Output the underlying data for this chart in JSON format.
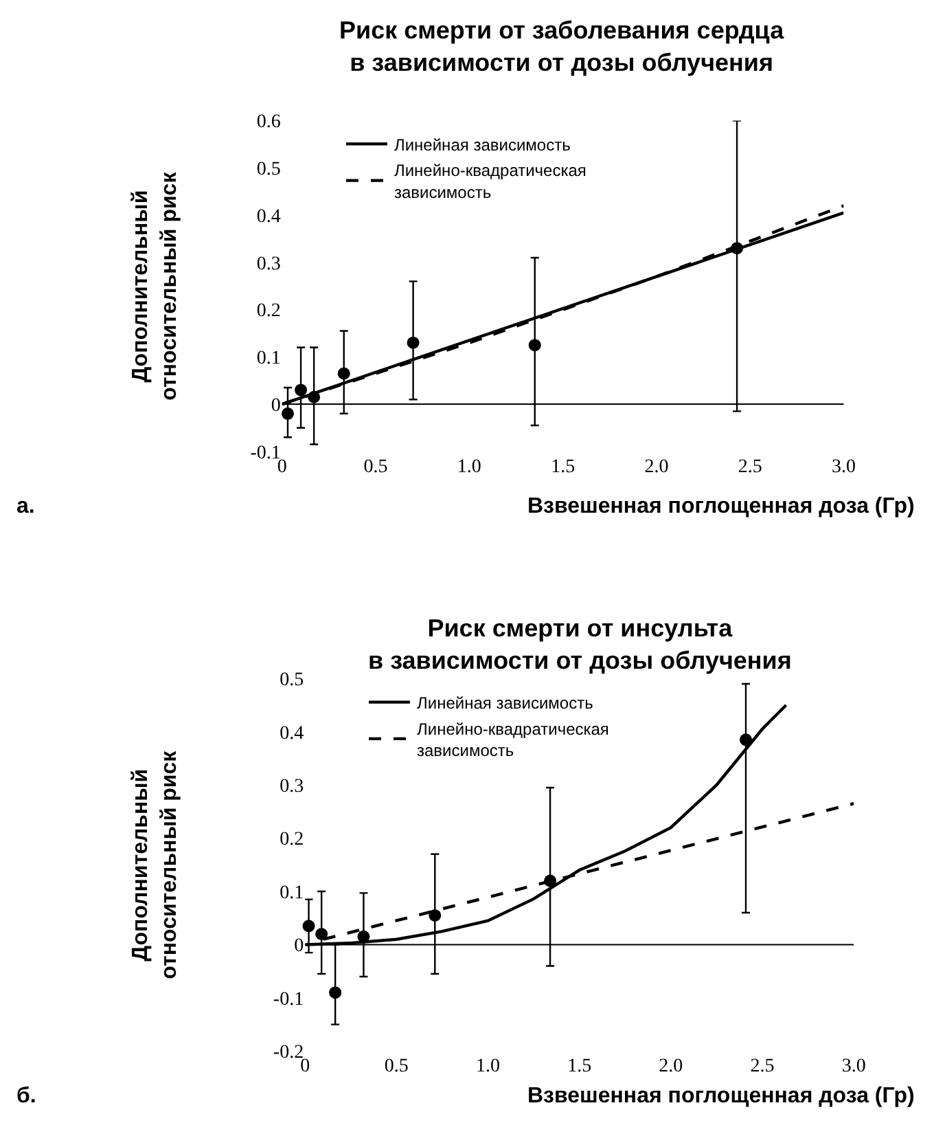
{
  "chart_data": [
    {
      "type": "scatter",
      "title": "Риск смерти от заболевания сердца\nв зависимости от дозы облучения",
      "xlabel": "Взвешенная поглощенная доза (Гр)",
      "ylabel": "Дополнительный\nотносительный риск",
      "annotations": [
        "а."
      ],
      "ref_lines": [
        {
          "axis": "y",
          "value": 0
        }
      ],
      "xlim": [
        0,
        3.0
      ],
      "ylim": [
        -0.1,
        0.6
      ],
      "xticks": [
        0,
        0.5,
        {
          "value": 1.0,
          "label": "1.0"
        },
        1.5,
        {
          "value": 2.0,
          "label": "2.0"
        },
        2.5,
        {
          "value": 3.0,
          "label": "3.0"
        }
      ],
      "yticks": [
        -0.1,
        0,
        0.1,
        0.2,
        0.3,
        0.4,
        0.5,
        0.6
      ],
      "grid": false,
      "legend": "top left",
      "series": [
        {
          "marker": "circle",
          "color": "#000000",
          "x": [
            0.03,
            0.1,
            0.17,
            0.33,
            0.7,
            1.35,
            2.43
          ],
          "values": [
            -0.02,
            0.03,
            0.015,
            0.065,
            0.13,
            0.125,
            0.33
          ],
          "errors": [
            [
              -0.07,
              0.035
            ],
            [
              -0.05,
              0.12
            ],
            [
              -0.085,
              0.12
            ],
            [
              -0.02,
              0.155
            ],
            [
              0.01,
              0.26
            ],
            [
              -0.045,
              0.31
            ],
            [
              -0.015,
              0.6
            ]
          ]
        },
        {
          "type": "line",
          "name": "Линейная зависимость",
          "line_style": "solid",
          "color": "#000000",
          "x": [
            0,
            3.0
          ],
          "values": [
            0,
            0.405
          ]
        },
        {
          "type": "line",
          "name": "Линейно-квадратическая\nзависимость",
          "line_style": "dashed",
          "color": "#000000",
          "x": [
            0,
            0.5,
            1.0,
            1.5,
            2.0,
            2.5,
            3.0
          ],
          "values": [
            0,
            0.065,
            0.13,
            0.2,
            0.27,
            0.345,
            0.42
          ]
        }
      ]
    },
    {
      "type": "scatter",
      "title": "Риск смерти от инсульта\nв зависимости от дозы облучения",
      "xlabel": "Взвешенная поглощенная доза (Гр)",
      "ylabel": "Дополнительный\nотносительный риск",
      "annotations": [
        "б."
      ],
      "ref_lines": [
        {
          "axis": "y",
          "value": 0
        }
      ],
      "xlim": [
        0,
        3.0
      ],
      "ylim": [
        -0.2,
        0.5
      ],
      "xticks": [
        0,
        0.5,
        {
          "value": 1.0,
          "label": "1.0"
        },
        1.5,
        {
          "value": 2.0,
          "label": "2.0"
        },
        2.5,
        {
          "value": 3.0,
          "label": "3.0"
        }
      ],
      "yticks": [
        -0.2,
        -0.1,
        0,
        0.1,
        0.2,
        0.3,
        0.4,
        0.5
      ],
      "grid": false,
      "legend": "top left",
      "series": [
        {
          "marker": "circle",
          "color": "#000000",
          "x": [
            0.02,
            0.09,
            0.165,
            0.32,
            0.71,
            1.34,
            2.41
          ],
          "values": [
            0.035,
            0.02,
            -0.09,
            0.015,
            0.055,
            0.12,
            0.385
          ],
          "errors": [
            [
              -0.015,
              0.085
            ],
            [
              -0.055,
              0.1
            ],
            [
              -0.15,
              0
            ],
            [
              -0.06,
              0.097
            ],
            [
              -0.055,
              0.17
            ],
            [
              -0.04,
              0.295
            ],
            [
              0.06,
              0.49
            ]
          ]
        },
        {
          "type": "line",
          "name": "Линейная зависимость",
          "line_style": "solid",
          "color": "#000000",
          "x": [
            0,
            0.25,
            0.5,
            0.75,
            1.0,
            1.25,
            1.5,
            1.75,
            2.0,
            2.25,
            2.5,
            2.63
          ],
          "values": [
            0,
            0.003,
            0.01,
            0.025,
            0.045,
            0.086,
            0.14,
            0.176,
            0.22,
            0.3,
            0.405,
            0.45
          ]
        },
        {
          "type": "line",
          "name": "Линейно-квадратическая\nзависимость",
          "line_style": "dashed",
          "color": "#000000",
          "x": [
            0.1,
            3.0
          ],
          "values": [
            0.01,
            0.265
          ]
        }
      ]
    }
  ]
}
